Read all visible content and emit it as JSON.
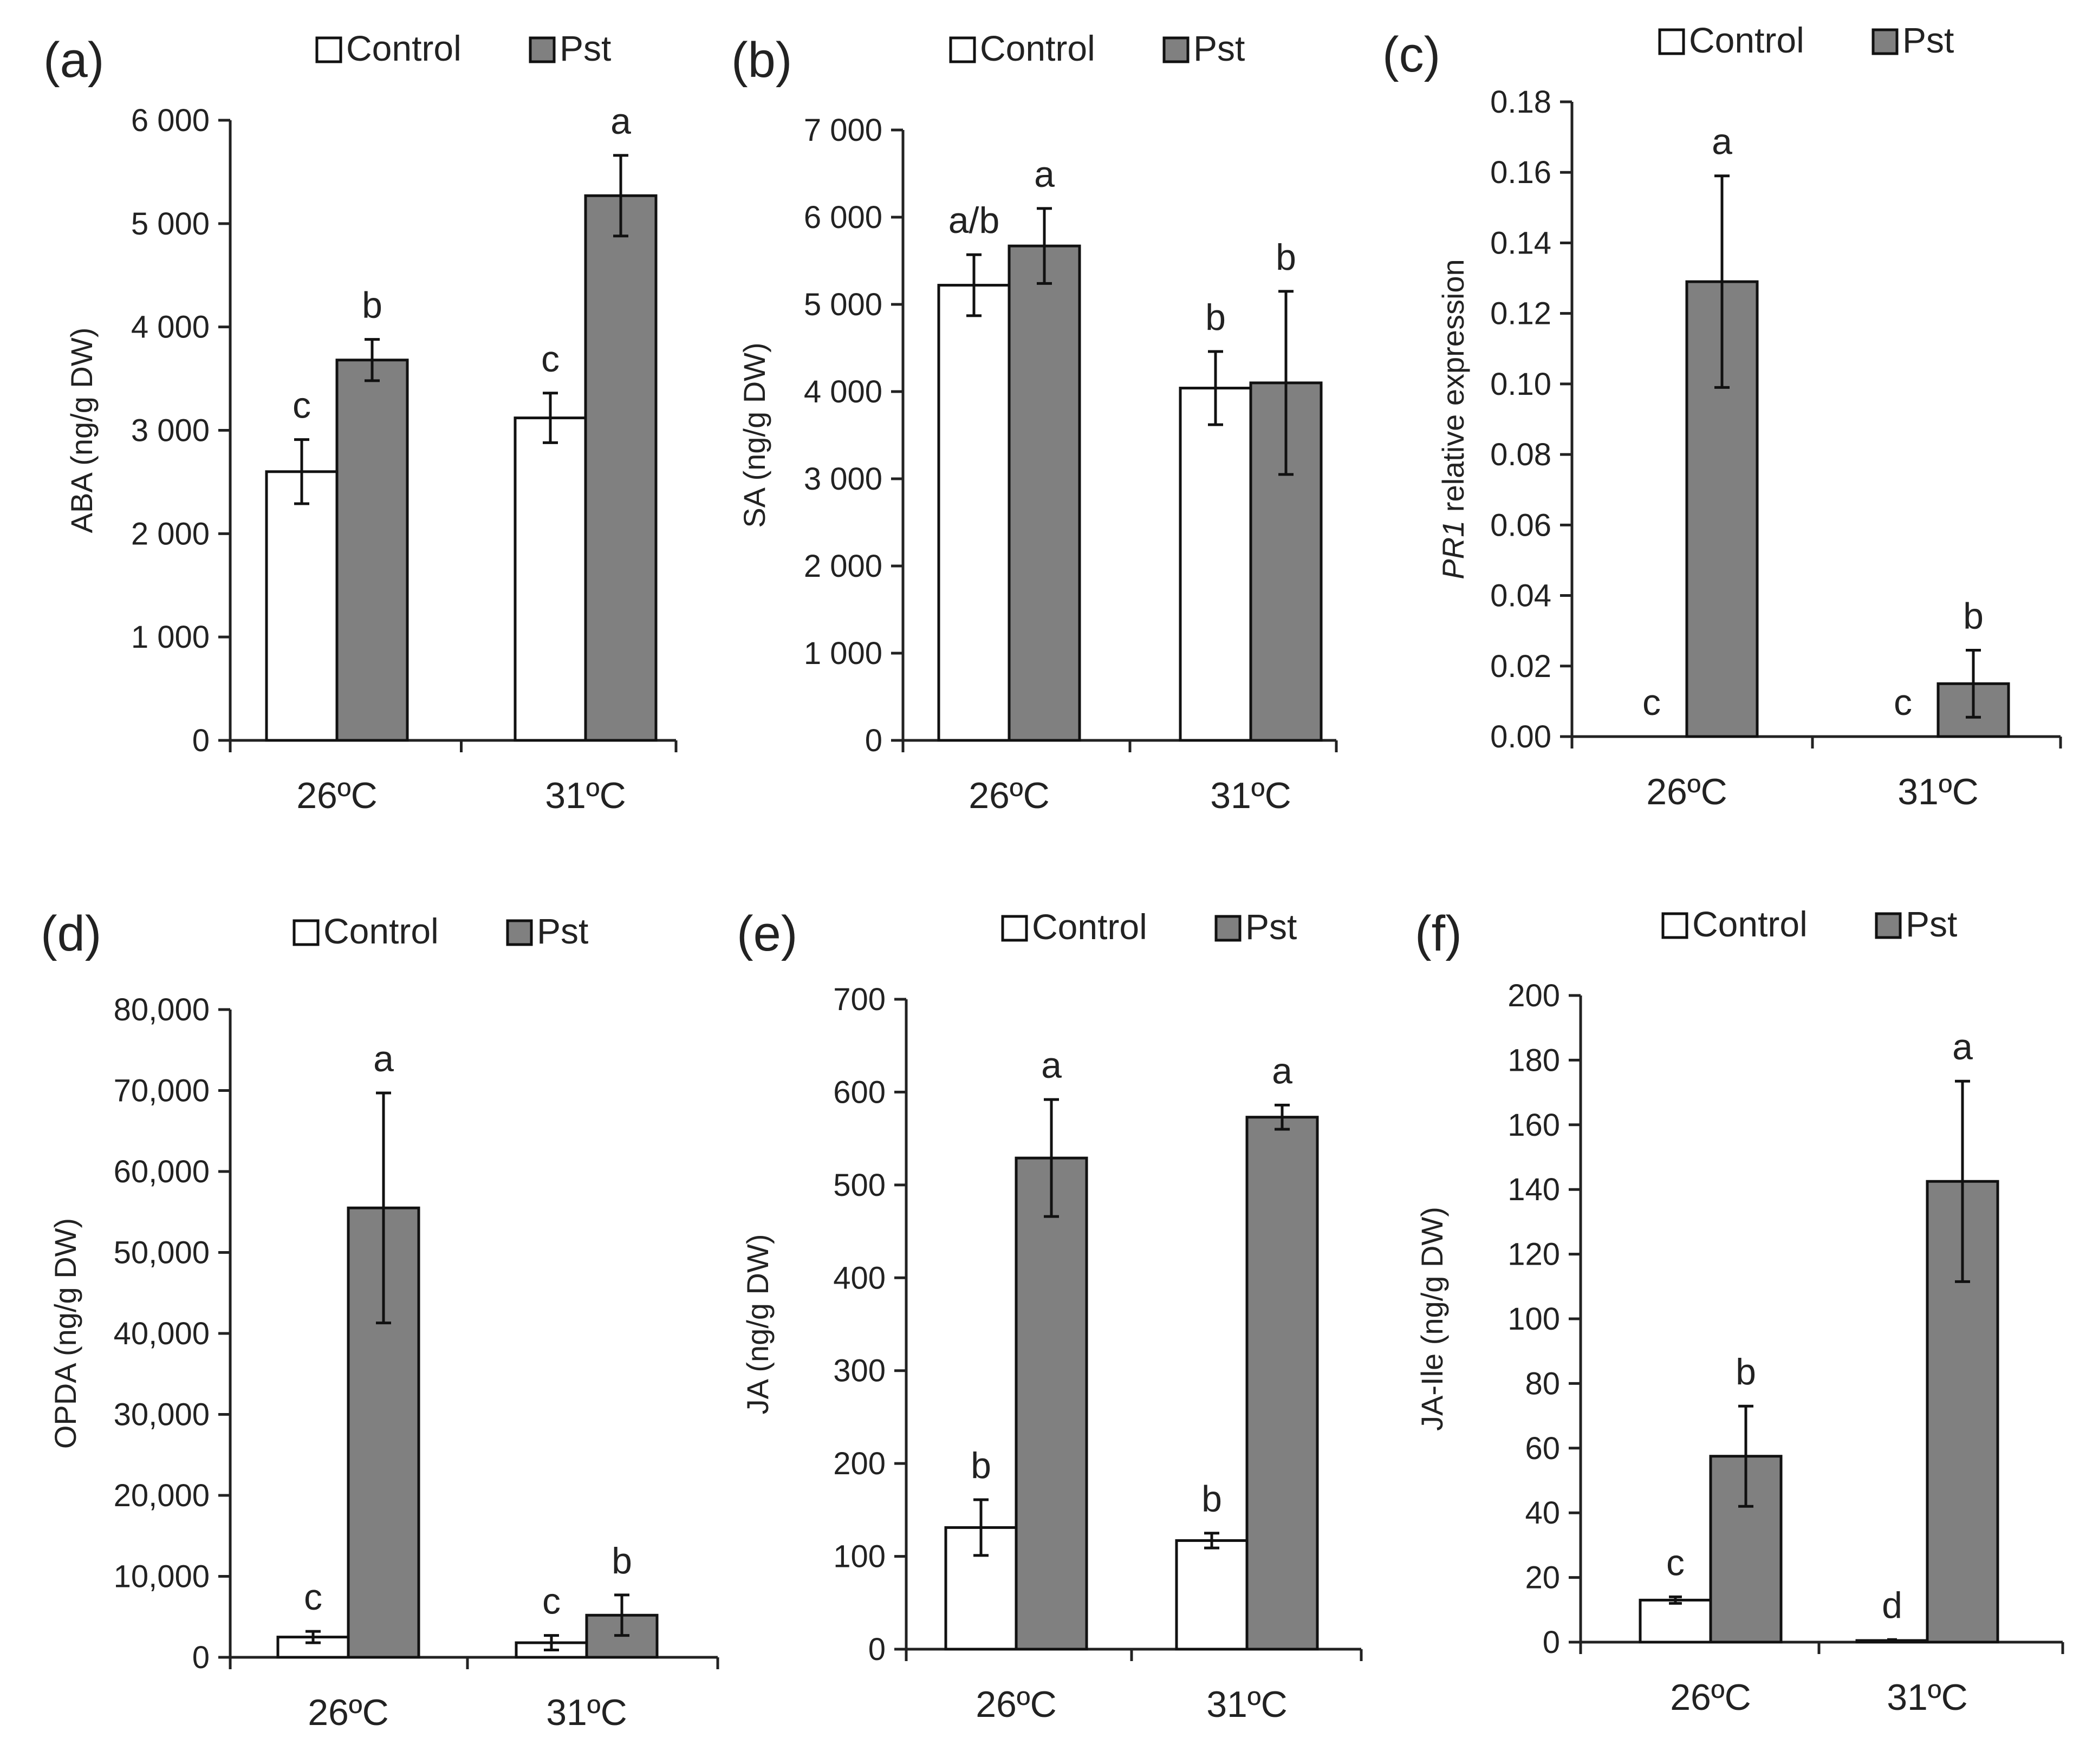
{
  "figure": {
    "panel_count": 6
  },
  "colors": {
    "control_fill": "#ffffff",
    "pst_fill": "#808080",
    "outline": "#111111",
    "text": "#222222"
  },
  "chart_data": [
    {
      "id": "a",
      "panel_label": "(a)",
      "type": "bar",
      "title": "",
      "categories": [
        "26ºC",
        "31ºC"
      ],
      "ylabel_parts": [
        {
          "text": "ABA (ng/g DW)",
          "italic": false
        }
      ],
      "ylim": [
        0,
        6000
      ],
      "yticks": [
        0,
        1000,
        2000,
        3000,
        4000,
        5000,
        6000
      ],
      "ytick_labels": [
        "0",
        "1 000",
        "2 000",
        "3 000",
        "4 000",
        "5 000",
        "6 000"
      ],
      "legend": {
        "position": "top-center",
        "entries": [
          "Control",
          "Pst"
        ]
      },
      "series": [
        {
          "name": "Control",
          "values": [
            2600,
            3120
          ],
          "errors": [
            310,
            240
          ],
          "letters": [
            "c",
            "c"
          ]
        },
        {
          "name": "Pst",
          "values": [
            3680,
            5270
          ],
          "errors": [
            200,
            390
          ],
          "letters": [
            "b",
            "a"
          ]
        }
      ]
    },
    {
      "id": "b",
      "panel_label": "(b)",
      "type": "bar",
      "title": "",
      "categories": [
        "26ºC",
        "31ºC"
      ],
      "ylabel_parts": [
        {
          "text": "SA (ng/g DW)",
          "italic": false
        }
      ],
      "ylim": [
        0,
        7000
      ],
      "yticks": [
        0,
        1000,
        2000,
        3000,
        4000,
        5000,
        6000,
        7000
      ],
      "ytick_labels": [
        "0",
        "1 000",
        "2 000",
        "3 000",
        "4 000",
        "5 000",
        "6 000",
        "7 000"
      ],
      "legend": {
        "position": "top-center",
        "entries": [
          "Control",
          "Pst"
        ]
      },
      "series": [
        {
          "name": "Control",
          "values": [
            5220,
            4040
          ],
          "errors": [
            350,
            420
          ],
          "letters": [
            "a/b",
            "b"
          ]
        },
        {
          "name": "Pst",
          "values": [
            5670,
            4100
          ],
          "errors": [
            430,
            1050
          ],
          "letters": [
            "a",
            "b"
          ]
        }
      ]
    },
    {
      "id": "c",
      "panel_label": "(c)",
      "type": "bar",
      "title": "",
      "categories": [
        "26ºC",
        "31ºC"
      ],
      "ylabel_parts": [
        {
          "text": "PR1",
          "italic": true
        },
        {
          "text": " relative expression",
          "italic": false
        }
      ],
      "ylim": [
        0,
        0.18
      ],
      "yticks": [
        0,
        0.02,
        0.04,
        0.06,
        0.08,
        0.1,
        0.12,
        0.14,
        0.16,
        0.18
      ],
      "ytick_labels": [
        "0.00",
        "0.02",
        "0.04",
        "0.06",
        "0.08",
        "0.10",
        "0.12",
        "0.14",
        "0.16",
        "0.18"
      ],
      "legend": {
        "position": "top-center",
        "entries": [
          "Control",
          "Pst"
        ]
      },
      "series": [
        {
          "name": "Control",
          "values": [
            0,
            0
          ],
          "errors": [
            0,
            0
          ],
          "letters": [
            "c",
            "c"
          ]
        },
        {
          "name": "Pst",
          "values": [
            0.129,
            0.015
          ],
          "errors": [
            0.03,
            0.0095
          ],
          "letters": [
            "a",
            "b"
          ]
        }
      ]
    },
    {
      "id": "d",
      "panel_label": "(d)",
      "type": "bar",
      "title": "",
      "categories": [
        "26ºC",
        "31ºC"
      ],
      "ylabel_parts": [
        {
          "text": "OPDA (ng/g DW)",
          "italic": false
        }
      ],
      "ylim": [
        0,
        80000
      ],
      "yticks": [
        0,
        10000,
        20000,
        30000,
        40000,
        50000,
        60000,
        70000,
        80000
      ],
      "ytick_labels": [
        "0",
        "10,000",
        "20,000",
        "30,000",
        "40,000",
        "50,000",
        "60,000",
        "70,000",
        "80,000"
      ],
      "legend": {
        "position": "top-center",
        "entries": [
          "Control",
          "Pst"
        ]
      },
      "series": [
        {
          "name": "Control",
          "values": [
            2500,
            1800
          ],
          "errors": [
            700,
            900
          ],
          "letters": [
            "c",
            "c"
          ]
        },
        {
          "name": "Pst",
          "values": [
            55500,
            5200
          ],
          "errors": [
            14200,
            2500
          ],
          "letters": [
            "a",
            "b"
          ]
        }
      ]
    },
    {
      "id": "e",
      "panel_label": "(e)",
      "type": "bar",
      "title": "",
      "categories": [
        "26ºC",
        "31ºC"
      ],
      "ylabel_parts": [
        {
          "text": "JA (ng/g DW)",
          "italic": false
        }
      ],
      "ylim": [
        0,
        700
      ],
      "yticks": [
        0,
        100,
        200,
        300,
        400,
        500,
        600,
        700
      ],
      "ytick_labels": [
        "0",
        "100",
        "200",
        "300",
        "400",
        "500",
        "600",
        "700"
      ],
      "legend": {
        "position": "top-center",
        "entries": [
          "Control",
          "Pst"
        ]
      },
      "series": [
        {
          "name": "Control",
          "values": [
            131,
            117
          ],
          "errors": [
            30,
            8
          ],
          "letters": [
            "b",
            "b"
          ]
        },
        {
          "name": "Pst",
          "values": [
            529,
            573
          ],
          "errors": [
            63,
            13
          ],
          "letters": [
            "a",
            "a"
          ]
        }
      ]
    },
    {
      "id": "f",
      "panel_label": "(f)",
      "type": "bar",
      "title": "",
      "categories": [
        "26ºC",
        "31ºC"
      ],
      "ylabel_parts": [
        {
          "text": "JA-Ile (ng/g DW)",
          "italic": false
        }
      ],
      "ylim": [
        0,
        200
      ],
      "yticks": [
        0,
        20,
        40,
        60,
        80,
        100,
        120,
        140,
        160,
        180,
        200
      ],
      "ytick_labels": [
        "0",
        "20",
        "40",
        "60",
        "80",
        "100",
        "120",
        "140",
        "160",
        "180",
        "200"
      ],
      "legend": {
        "position": "top-center",
        "entries": [
          "Control",
          "Pst"
        ]
      },
      "series": [
        {
          "name": "Control",
          "values": [
            13,
            0.5
          ],
          "errors": [
            1,
            0.3
          ],
          "letters": [
            "c",
            "d"
          ]
        },
        {
          "name": "Pst",
          "values": [
            57.5,
            142.5
          ],
          "errors": [
            15.5,
            31
          ],
          "letters": [
            "b",
            "a"
          ]
        }
      ]
    }
  ]
}
